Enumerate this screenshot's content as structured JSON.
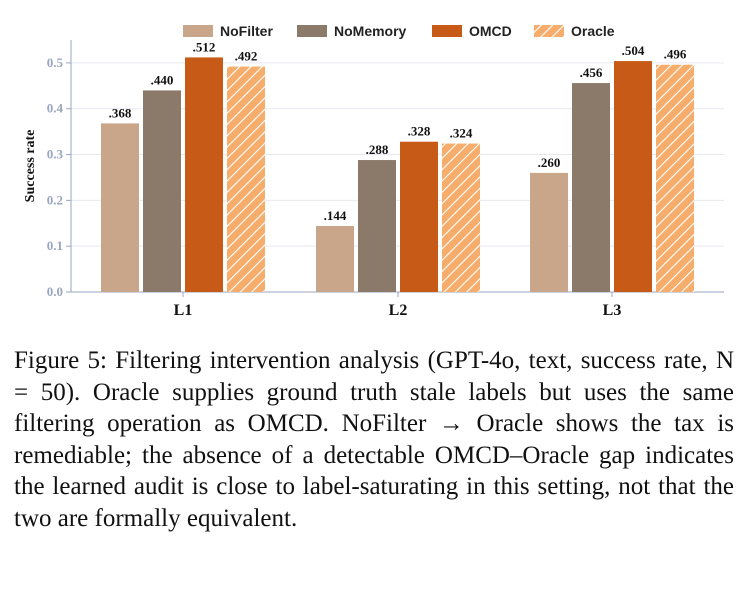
{
  "chart_data": {
    "type": "bar",
    "title": "",
    "xlabel": "",
    "ylabel": "Success rate",
    "ylim": [
      0,
      0.55
    ],
    "yticks": [
      "0.0",
      "0.1",
      "0.2",
      "0.3",
      "0.4",
      "0.5"
    ],
    "ytick_values": [
      0,
      0.1,
      0.2,
      0.3,
      0.4,
      0.5
    ],
    "categories": [
      "L1",
      "L2",
      "L3"
    ],
    "grid": "horizontal",
    "legend_position": "top",
    "series": [
      {
        "name": "NoFilter",
        "color": "#c9a58a",
        "hatch": false,
        "values": [
          0.368,
          0.144,
          0.26
        ],
        "labels": [
          ".368",
          ".144",
          ".260"
        ]
      },
      {
        "name": "NoMemory",
        "color": "#8b7a69",
        "hatch": false,
        "values": [
          0.44,
          0.288,
          0.456
        ],
        "labels": [
          ".440",
          ".288",
          ".456"
        ]
      },
      {
        "name": "OMCD",
        "color": "#c85a17",
        "hatch": false,
        "values": [
          0.512,
          0.328,
          0.504
        ],
        "labels": [
          ".512",
          ".328",
          ".504"
        ]
      },
      {
        "name": "Oracle",
        "color": "#f6ad6c",
        "hatch": true,
        "values": [
          0.492,
          0.324,
          0.496
        ],
        "labels": [
          ".492",
          ".324",
          ".496"
        ]
      }
    ]
  },
  "caption": "Figure 5: Filtering intervention analysis (GPT-4o, text, success rate, N = 50). Oracle supplies ground truth stale labels but uses the same filtering operation as OMCD. NoFilter → Oracle shows the tax is remediable; the absence of a detectable OMCD–Oracle gap indicates the learned audit is close to label-saturating in this setting, not that the two are formally equivalent."
}
